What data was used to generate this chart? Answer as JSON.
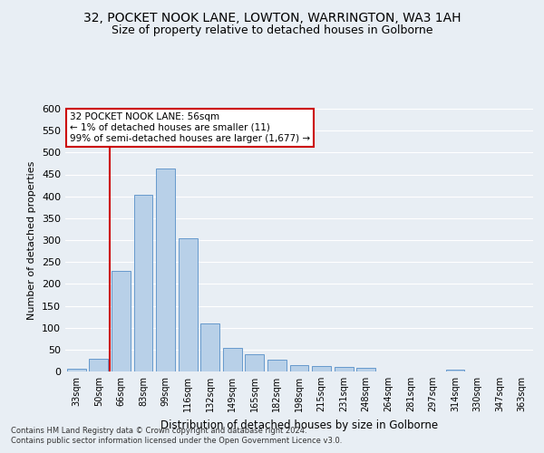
{
  "title1": "32, POCKET NOOK LANE, LOWTON, WARRINGTON, WA3 1AH",
  "title2": "Size of property relative to detached houses in Golborne",
  "xlabel": "Distribution of detached houses by size in Golborne",
  "ylabel": "Number of detached properties",
  "categories": [
    "33sqm",
    "50sqm",
    "66sqm",
    "83sqm",
    "99sqm",
    "116sqm",
    "132sqm",
    "149sqm",
    "165sqm",
    "182sqm",
    "198sqm",
    "215sqm",
    "231sqm",
    "248sqm",
    "264sqm",
    "281sqm",
    "297sqm",
    "314sqm",
    "330sqm",
    "347sqm",
    "363sqm"
  ],
  "values": [
    7,
    30,
    230,
    403,
    463,
    305,
    110,
    54,
    40,
    27,
    14,
    13,
    10,
    8,
    0,
    0,
    0,
    5,
    0,
    0,
    0
  ],
  "bar_color": "#b8d0e8",
  "bar_edge_color": "#6699cc",
  "annotation_text": "32 POCKET NOOK LANE: 56sqm\n← 1% of detached houses are smaller (11)\n99% of semi-detached houses are larger (1,677) →",
  "annotation_box_color": "#ffffff",
  "annotation_box_edge": "#cc0000",
  "red_line_color": "#cc0000",
  "ylim": [
    0,
    600
  ],
  "yticks": [
    0,
    50,
    100,
    150,
    200,
    250,
    300,
    350,
    400,
    450,
    500,
    550,
    600
  ],
  "footer1": "Contains HM Land Registry data © Crown copyright and database right 2024.",
  "footer2": "Contains public sector information licensed under the Open Government Licence v3.0.",
  "background_color": "#e8eef4",
  "grid_color": "#ffffff",
  "title1_fontsize": 10,
  "title2_fontsize": 9
}
